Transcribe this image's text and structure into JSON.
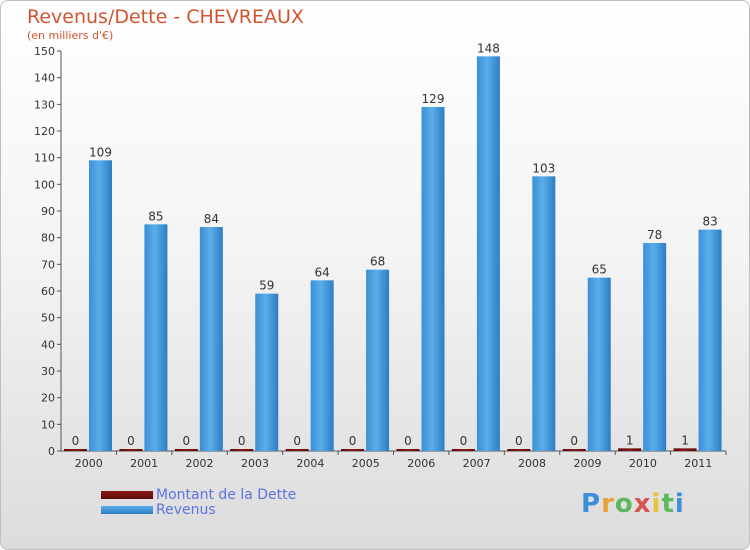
{
  "chart_data": {
    "type": "bar",
    "title": "Revenus/Dette - CHEVREAUX",
    "subtitle": "(en milliers d'€)",
    "categories": [
      "2000",
      "2001",
      "2002",
      "2003",
      "2004",
      "2005",
      "2006",
      "2007",
      "2008",
      "2009",
      "2010",
      "2011"
    ],
    "series": [
      {
        "name": "Montant de la Dette",
        "color": "#7a0e0e",
        "values": [
          0,
          0,
          0,
          0,
          0,
          0,
          0,
          0,
          0,
          0,
          1,
          1
        ]
      },
      {
        "name": "Revenus",
        "color": "#4da3e6",
        "values": [
          109,
          85,
          84,
          59,
          64,
          68,
          129,
          148,
          103,
          65,
          78,
          83
        ]
      }
    ],
    "ylim": [
      0,
      150
    ],
    "yticks": [
      0,
      10,
      20,
      30,
      40,
      50,
      60,
      70,
      80,
      90,
      100,
      110,
      120,
      130,
      140,
      150
    ],
    "grid": false,
    "legend_position": "bottom-left"
  },
  "brand": {
    "letters": [
      "P",
      "r",
      "o",
      "x",
      "i",
      "t",
      "i"
    ],
    "colors": [
      "#3a8fd8",
      "#e8a13a",
      "#5cb85c",
      "#d9534f",
      "#e8c23a",
      "#5cb85c",
      "#3a8fd8"
    ]
  }
}
